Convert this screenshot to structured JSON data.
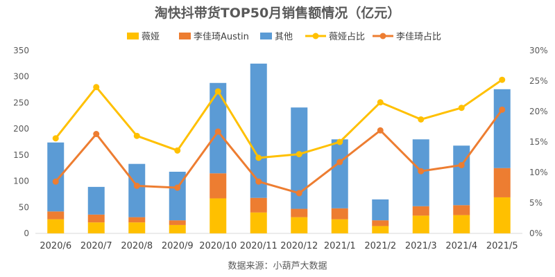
{
  "chart_data": {
    "type": "bar",
    "title": "淘快抖带货TOP50月销售额情况（亿元）",
    "categories": [
      "2020/6",
      "2020/7",
      "2020/8",
      "2020/9",
      "2020/10",
      "2020/11",
      "2020/12",
      "2021/1",
      "2021/2",
      "2021/3",
      "2021/4",
      "2021/5"
    ],
    "stacked": true,
    "series": [
      {
        "name": "薇娅",
        "type": "bar",
        "color": "#FFC000",
        "values": [
          27,
          21,
          21,
          16,
          67,
          40,
          31,
          27,
          14,
          34,
          35,
          69
        ]
      },
      {
        "name": "李佳琦Austin",
        "type": "bar",
        "color": "#ED7D31",
        "values": [
          15,
          15,
          10,
          9,
          48,
          28,
          16,
          21,
          11,
          18,
          19,
          56
        ]
      },
      {
        "name": "其他",
        "type": "bar",
        "color": "#5B9BD5",
        "values": [
          132,
          53,
          102,
          93,
          173,
          257,
          194,
          132,
          40,
          128,
          114,
          151
        ]
      },
      {
        "name": "薇娅占比",
        "type": "line",
        "color": "#FFC000",
        "values": [
          15.6,
          24.0,
          16.0,
          13.6,
          23.3,
          12.4,
          13.0,
          15.0,
          21.5,
          18.7,
          20.6,
          25.2
        ]
      },
      {
        "name": "李佳琦占比",
        "type": "line",
        "color": "#ED7D31",
        "values": [
          8.5,
          16.3,
          7.8,
          7.5,
          16.7,
          8.5,
          6.6,
          11.7,
          16.9,
          10.2,
          11.2,
          20.3
        ]
      }
    ],
    "xlabel": "",
    "ylabel": "",
    "ylim": [
      0,
      350
    ],
    "yticks": [
      0,
      50,
      100,
      150,
      200,
      250,
      300,
      350
    ],
    "y2lim": [
      0,
      30
    ],
    "y2ticks": [
      0,
      5,
      10,
      15,
      20,
      25,
      30
    ],
    "y2tick_labels": [
      "0%",
      "5%",
      "10%",
      "15%",
      "20%",
      "25%",
      "30%"
    ],
    "grid": false,
    "legend": "top",
    "source": "数据来源：小葫芦大数据"
  }
}
